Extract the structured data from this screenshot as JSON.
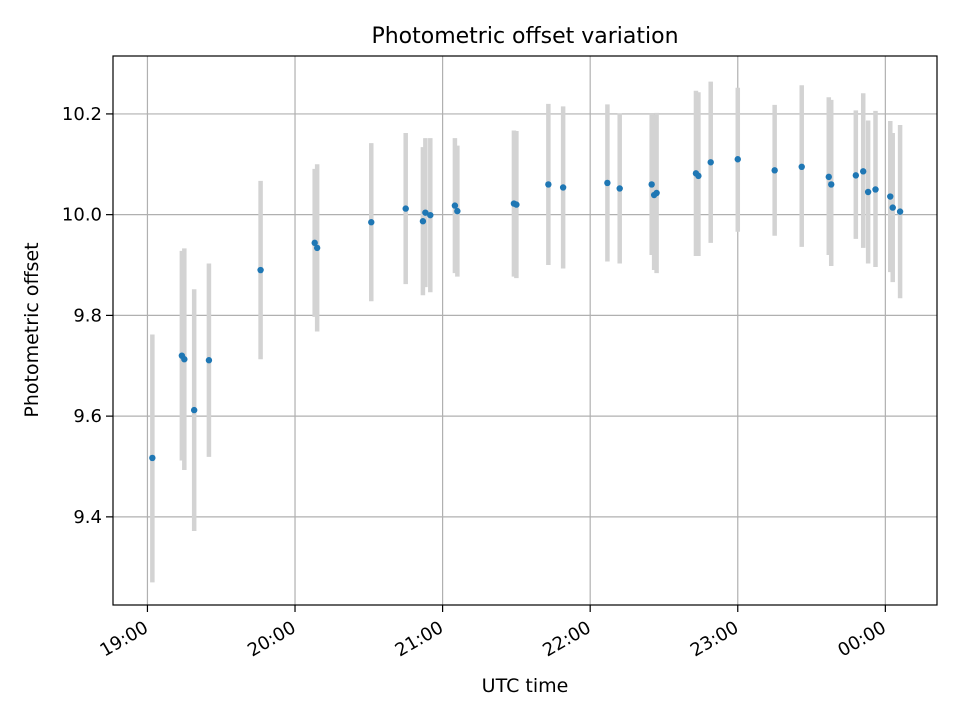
{
  "chart_data": {
    "type": "scatter",
    "title": "Photometric offset variation",
    "xlabel": "UTC time",
    "ylabel": "Photometric offset",
    "grid": true,
    "x_ticks": [
      "19:00",
      "20:00",
      "21:00",
      "22:00",
      "23:00",
      "00:00"
    ],
    "y_ticks": [
      "9.4",
      "9.6",
      "9.8",
      "10.0",
      "10.2"
    ],
    "xlim": [
      "18:46",
      "00:21"
    ],
    "ylim": [
      9.225,
      10.315
    ],
    "colors": {
      "point": "#1f77b4",
      "errorbar": "#d3d3d3",
      "grid": "#b0b0b0"
    },
    "points": [
      {
        "t": "19:02",
        "y": 9.517,
        "lo": 9.27,
        "hi": 9.762
      },
      {
        "t": "19:14",
        "y": 9.72,
        "lo": 9.512,
        "hi": 9.928
      },
      {
        "t": "19:15",
        "y": 9.713,
        "lo": 9.493,
        "hi": 9.933
      },
      {
        "t": "19:19",
        "y": 9.612,
        "lo": 9.372,
        "hi": 9.852
      },
      {
        "t": "19:25",
        "y": 9.711,
        "lo": 9.519,
        "hi": 9.903
      },
      {
        "t": "19:46",
        "y": 9.89,
        "lo": 9.713,
        "hi": 10.067
      },
      {
        "t": "20:08",
        "y": 9.944,
        "lo": 9.797,
        "hi": 10.091
      },
      {
        "t": "20:09",
        "y": 9.934,
        "lo": 9.768,
        "hi": 10.1
      },
      {
        "t": "20:31",
        "y": 9.985,
        "lo": 9.828,
        "hi": 10.142
      },
      {
        "t": "20:45",
        "y": 10.012,
        "lo": 9.862,
        "hi": 10.162
      },
      {
        "t": "20:52",
        "y": 9.987,
        "lo": 9.84,
        "hi": 10.134
      },
      {
        "t": "20:53",
        "y": 10.004,
        "lo": 9.856,
        "hi": 10.152
      },
      {
        "t": "20:55",
        "y": 9.999,
        "lo": 9.846,
        "hi": 10.152
      },
      {
        "t": "21:05",
        "y": 10.018,
        "lo": 9.884,
        "hi": 10.152
      },
      {
        "t": "21:06",
        "y": 10.007,
        "lo": 9.877,
        "hi": 10.137
      },
      {
        "t": "21:29",
        "y": 10.022,
        "lo": 9.877,
        "hi": 10.167
      },
      {
        "t": "21:30",
        "y": 10.02,
        "lo": 9.874,
        "hi": 10.166
      },
      {
        "t": "21:43",
        "y": 10.06,
        "lo": 9.9,
        "hi": 10.22
      },
      {
        "t": "21:49",
        "y": 10.054,
        "lo": 9.893,
        "hi": 10.215
      },
      {
        "t": "22:07",
        "y": 10.063,
        "lo": 9.907,
        "hi": 10.219
      },
      {
        "t": "22:12",
        "y": 10.052,
        "lo": 9.903,
        "hi": 10.201
      },
      {
        "t": "22:25",
        "y": 10.06,
        "lo": 9.92,
        "hi": 10.2
      },
      {
        "t": "22:26",
        "y": 10.039,
        "lo": 9.89,
        "hi": 10.199
      },
      {
        "t": "22:27",
        "y": 10.043,
        "lo": 9.884,
        "hi": 10.202
      },
      {
        "t": "22:43",
        "y": 10.082,
        "lo": 9.918,
        "hi": 10.246
      },
      {
        "t": "22:44",
        "y": 10.077,
        "lo": 9.918,
        "hi": 10.243
      },
      {
        "t": "22:49",
        "y": 10.104,
        "lo": 9.944,
        "hi": 10.264
      },
      {
        "t": "23:00",
        "y": 10.11,
        "lo": 9.966,
        "hi": 10.252
      },
      {
        "t": "23:15",
        "y": 10.088,
        "lo": 9.958,
        "hi": 10.218
      },
      {
        "t": "23:26",
        "y": 10.095,
        "lo": 9.936,
        "hi": 10.257
      },
      {
        "t": "23:37",
        "y": 10.075,
        "lo": 9.92,
        "hi": 10.233
      },
      {
        "t": "23:38",
        "y": 10.06,
        "lo": 9.898,
        "hi": 10.228
      },
      {
        "t": "23:48",
        "y": 10.078,
        "lo": 9.952,
        "hi": 10.207
      },
      {
        "t": "23:51",
        "y": 10.086,
        "lo": 9.934,
        "hi": 10.241
      },
      {
        "t": "23:53",
        "y": 10.045,
        "lo": 9.903,
        "hi": 10.187
      },
      {
        "t": "23:56",
        "y": 10.05,
        "lo": 9.896,
        "hi": 10.206
      },
      {
        "t": "00:02",
        "y": 10.036,
        "lo": 9.886,
        "hi": 10.186
      },
      {
        "t": "00:03",
        "y": 10.014,
        "lo": 9.866,
        "hi": 10.162
      },
      {
        "t": "00:06",
        "y": 10.006,
        "lo": 9.834,
        "hi": 10.178
      }
    ]
  }
}
